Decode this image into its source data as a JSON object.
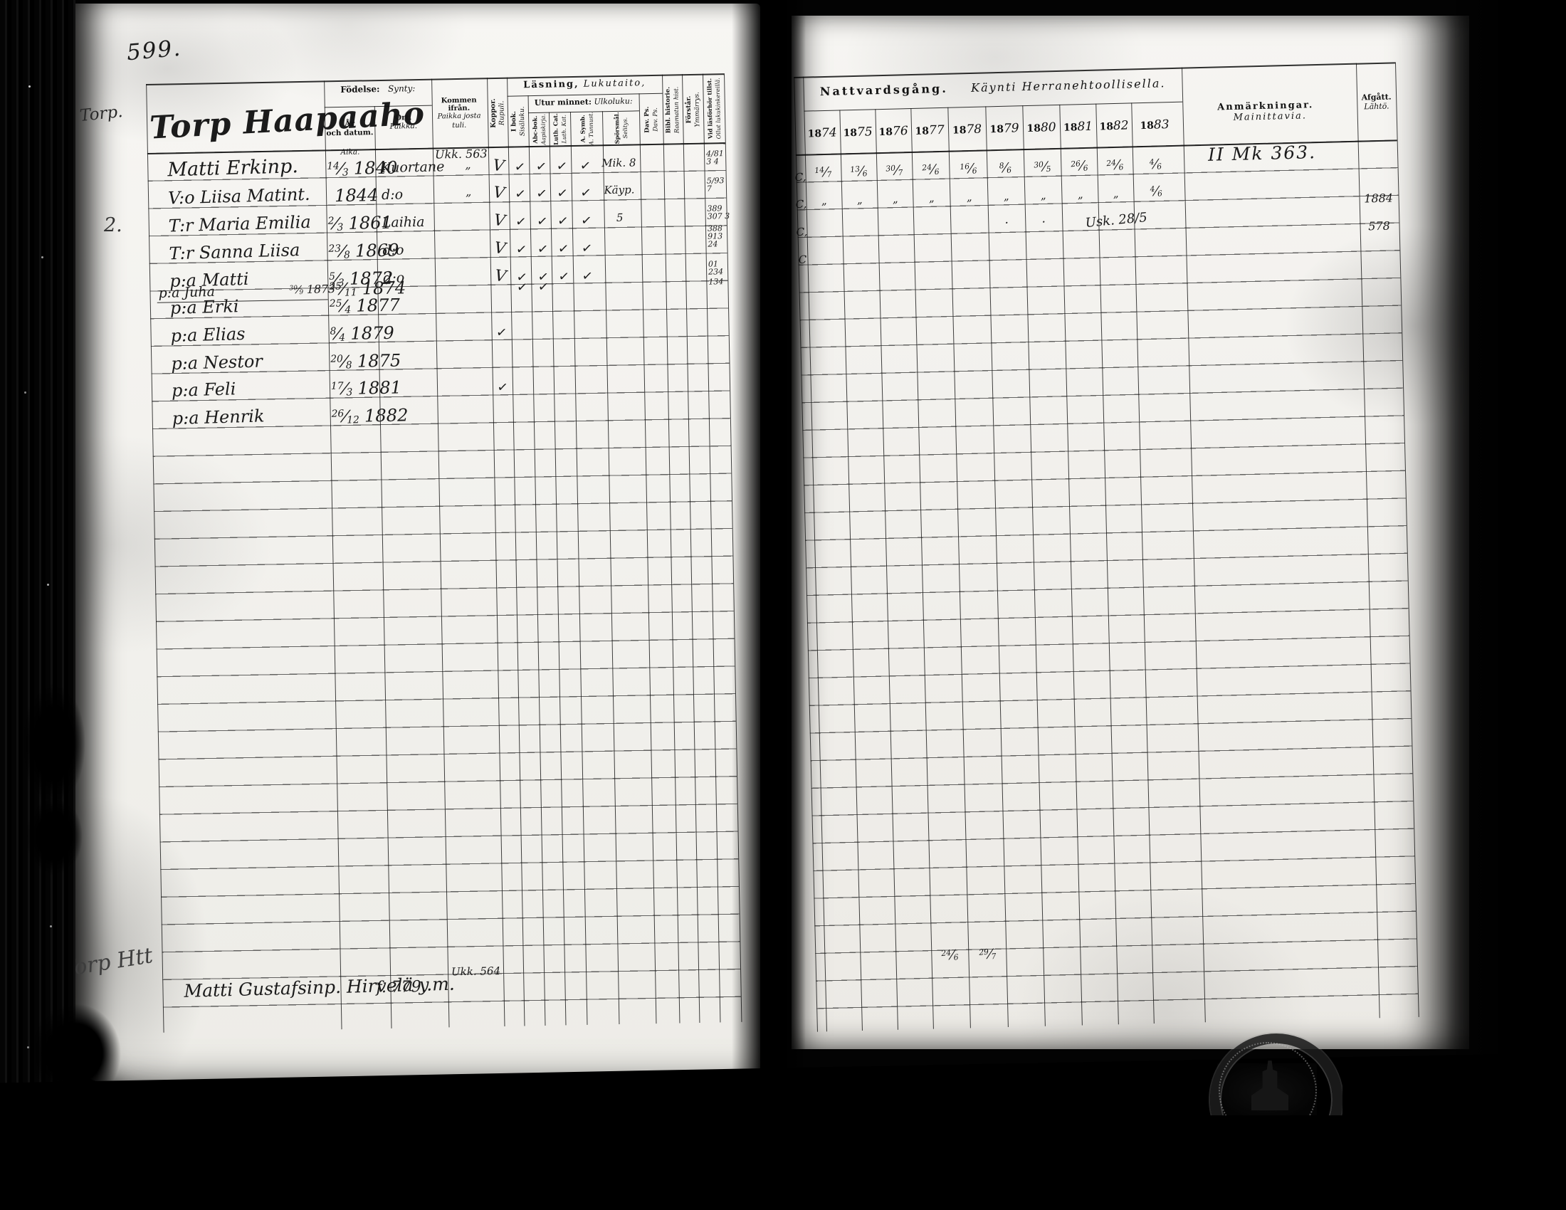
{
  "page_number": "599.",
  "left": {
    "title": "Torp Haapaaho",
    "margin_label": "Torp.",
    "margin_mark": "2.",
    "cols": {
      "fodelse_sv": "Födelse:",
      "fodelse_fi": "Synty:",
      "ar_sv": "År\noch datum.",
      "ar_fi": "Aika.",
      "ort_sv": "Ort.",
      "ort_fi": "Paikka.",
      "kommen_sv": "Kommen ifrån.",
      "kommen_fi": "Paikka josta\ntuli.",
      "koppor_sv": "Koppor.",
      "koppor_fi": "Rupuli.",
      "lasning_sv": "Läsning,",
      "lasning_fi": "Lukutaito,",
      "utur_sv": "Utur minnet:",
      "utur_fi": "Ulkoluku:",
      "ibok_sv": "I bok.",
      "ibok_fi": "Sisäluku.",
      "abc_sv": "Abc-bok.",
      "abc_fi": "Aapiskirja.",
      "luth_sv": "Luth. Cat.",
      "luth_fi": "Luth. Kat.",
      "symb_sv": "A. Symb.",
      "symb_fi": "A. Tunnust.",
      "spors_sv": "Spörsmål.",
      "spors_fi": "Selitys.",
      "dav_sv": "Dav. Ps.",
      "dav_fi": "Dav. Ps.",
      "bibl_sv": "Bibl. historie.",
      "bibl_fi": "Raamatun hist.",
      "forstar_sv": "Förstår.",
      "forstar_fi": "Ymmärrys.",
      "vidlas_sv": "Vid läsförhör tillst.",
      "vidlas_fi": "Ollut lukukinkereillä."
    }
  },
  "right": {
    "cols": {
      "natt_sv": "Nattvardsgång.",
      "natt_fi": "Käynti Herranehtoollisella.",
      "anm_sv": "Anmärkningar.",
      "anm_fi": "Mainittavia.",
      "afg_sv": "Afgått.",
      "afg_fi": "Lähtö."
    },
    "year_prefix": "18",
    "years": [
      "74",
      "75",
      "76",
      "77",
      "78",
      "79",
      "80",
      "81",
      "82",
      "83"
    ]
  },
  "records": [
    {
      "name": "Matti Erkinp.",
      "born": "14/3 1840",
      "place": "Kuortane",
      "from": "Ukk. 563",
      "from_ditto": "„",
      "marks": [
        "V",
        "✓",
        "✓",
        "✓",
        "✓"
      ],
      "note": "Mik. 8",
      "attended": [
        "4/81",
        "3 4"
      ],
      "cmargin": "C,",
      "comm": {
        "74": "14/7",
        "75": "13/6",
        "76": "30/7",
        "77": "24/6",
        "78": "16/6",
        "79": "8/6",
        "80": "30/5",
        "81": "26/6",
        "82": "24/6",
        "83": "4/6"
      },
      "remark": "II Mk 363."
    },
    {
      "name": "V:o Liisa Matint.",
      "born": "1844",
      "place": "d:o",
      "from_ditto": "„",
      "marks": [
        "V",
        "✓",
        "✓",
        "✓",
        "✓"
      ],
      "note": "Käyp.",
      "attended": [
        "5/93",
        "7"
      ],
      "cmargin": "C,",
      "comm": {
        "74": "„",
        "75": "„",
        "76": "„",
        "77": "„",
        "78": "„",
        "79": "„",
        "80": "„",
        "81": "„",
        "82": "„",
        "83": "4/6"
      }
    },
    {
      "name": "T:r Maria Emilia",
      "born": "2/3 1861",
      "place": "Laihia",
      "marks": [
        "V",
        "✓",
        "✓",
        "✓",
        "✓"
      ],
      "note": "5",
      "attended": [
        "389",
        "307 3"
      ],
      "cmargin": "C,",
      "comm": {
        "79": "·",
        "80": "·",
        "82": "Usk. 28/5"
      },
      "afgatt": [
        "1884",
        "578"
      ]
    },
    {
      "name": "T:r Sanna Liisa",
      "born": "23/8 1869",
      "place": "d:o",
      "marks": [
        "V",
        "✓",
        "✓",
        "✓",
        "✓"
      ],
      "attended": [
        "388",
        "913",
        "24"
      ],
      "cmargin": "C"
    },
    {
      "name": "p:a Matti",
      "born": "5/3 1872",
      "place": "d:o",
      "marks": [
        "V",
        "✓",
        "✓",
        "✓",
        "✓"
      ],
      "attended": [
        "01",
        "234"
      ]
    },
    {
      "name": "p:a Juha",
      "note2": "30/9 1873",
      "born": "25/11 1874",
      "marks": [
        "✓",
        "✓"
      ],
      "marks_offset": 1,
      "attended": [
        "134"
      ],
      "squeezed": true
    },
    {
      "name": "p:a Erki",
      "born": "25/4 1877"
    },
    {
      "name": "p:a Elias",
      "born": "8/4 1879",
      "marks": [
        "✓"
      ]
    },
    {
      "name": "p:a Nestor",
      "born": "20/8 1875"
    },
    {
      "name": "p:a Feli",
      "born": "17/3 1881",
      "marks": [
        "✓"
      ]
    },
    {
      "name": "p:a Henrik",
      "born": "26/12 1882"
    }
  ],
  "addendum": {
    "margin": "Torp Htt",
    "name": "Matti Gustafsinp. Hirvelä y.m.",
    "born": "f. 779.",
    "from": "Ukk. 564",
    "comm": {
      "77": "24/6",
      "78": "29/7"
    }
  }
}
